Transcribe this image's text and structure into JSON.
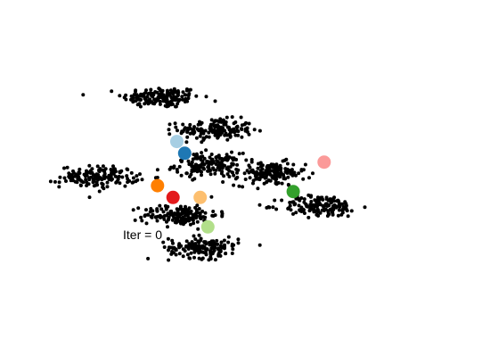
{
  "chart_data": {
    "type": "scatter",
    "title": "",
    "xlabel": "",
    "ylabel": "",
    "axes_visible": false,
    "grid": false,
    "annotation": {
      "prefix": "Iter = ",
      "value": 0
    },
    "xlim": [
      0,
      10
    ],
    "ylim": [
      0,
      10
    ],
    "point_color": "#000000",
    "clusters": [
      {
        "center": [
          2.9,
          7.3
        ],
        "spread": [
          0.5,
          0.18
        ],
        "count": 160
      },
      {
        "center": [
          4.3,
          6.2
        ],
        "spread": [
          0.48,
          0.18
        ],
        "count": 160
      },
      {
        "center": [
          4.1,
          5.0
        ],
        "spread": [
          0.42,
          0.2
        ],
        "count": 160
      },
      {
        "center": [
          1.3,
          4.6
        ],
        "spread": [
          0.5,
          0.18
        ],
        "count": 160
      },
      {
        "center": [
          5.7,
          4.7
        ],
        "spread": [
          0.45,
          0.2
        ],
        "count": 160
      },
      {
        "center": [
          3.4,
          3.3
        ],
        "spread": [
          0.48,
          0.18
        ],
        "count": 160
      },
      {
        "center": [
          7.0,
          3.6
        ],
        "spread": [
          0.5,
          0.18
        ],
        "count": 160
      },
      {
        "center": [
          4.0,
          2.2
        ],
        "spread": [
          0.45,
          0.18
        ],
        "count": 160
      }
    ],
    "centroids": [
      {
        "x": 3.3,
        "y": 5.8,
        "color": "#a6cee3"
      },
      {
        "x": 3.5,
        "y": 5.4,
        "color": "#1f78b4"
      },
      {
        "x": 2.8,
        "y": 4.3,
        "color": "#ff7f00"
      },
      {
        "x": 3.2,
        "y": 3.9,
        "color": "#e31a1c"
      },
      {
        "x": 3.9,
        "y": 3.9,
        "color": "#fdbf6f"
      },
      {
        "x": 4.1,
        "y": 2.9,
        "color": "#b2df8a"
      },
      {
        "x": 6.3,
        "y": 4.1,
        "color": "#33a02c"
      },
      {
        "x": 7.1,
        "y": 5.1,
        "color": "#fb9a99"
      }
    ]
  }
}
